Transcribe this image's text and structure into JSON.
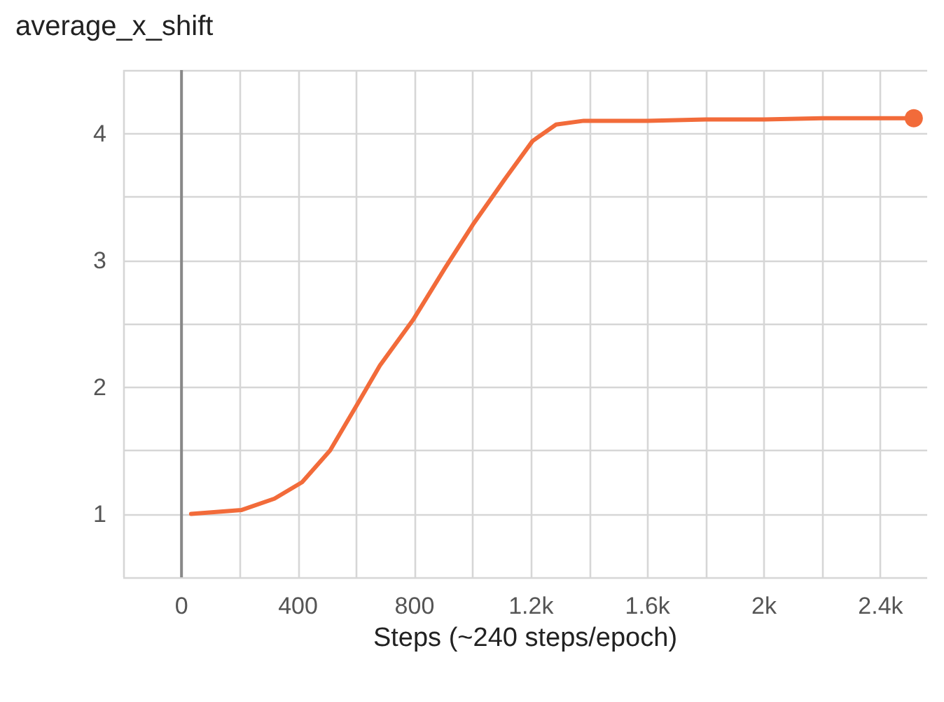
{
  "chart_data": {
    "type": "line",
    "title": "average_x_shift",
    "xlabel": "Steps (~240 steps/epoch)",
    "x": [
      33,
      205,
      319,
      414,
      510,
      605,
      681,
      795,
      905,
      1000,
      1110,
      1205,
      1286,
      1381,
      1600,
      1800,
      2000,
      2200,
      2400,
      2514
    ],
    "series": [
      {
        "color": "#f26b3a",
        "values": [
          1.0,
          1.03,
          1.12,
          1.25,
          1.5,
          1.87,
          2.17,
          2.53,
          2.94,
          3.28,
          3.64,
          3.94,
          4.07,
          4.1,
          4.1,
          4.11,
          4.11,
          4.12,
          4.12,
          4.12
        ]
      }
    ],
    "xlim": [
      -200,
      2560
    ],
    "xticks": [
      {
        "value": -200,
        "label": null
      },
      0,
      {
        "value": 200,
        "label": null
      },
      400,
      {
        "value": 600,
        "label": null
      },
      800,
      {
        "value": 1000,
        "label": null
      },
      {
        "value": 1200,
        "label": "1.2k"
      },
      {
        "value": 1400,
        "label": null
      },
      {
        "value": 1600,
        "label": "1.6k"
      },
      {
        "value": 1800,
        "label": null
      },
      {
        "value": 2000,
        "label": "2k"
      },
      {
        "value": 2200,
        "label": null
      },
      {
        "value": 2400,
        "label": "2.4k"
      }
    ],
    "ylim": [
      0.5,
      4.5
    ],
    "yticks": [
      {
        "value": 0.5,
        "label": null
      },
      1,
      {
        "value": 1.5,
        "label": null
      },
      2,
      {
        "value": 2.5,
        "label": null
      },
      3,
      {
        "value": 3.5,
        "label": null
      },
      4,
      {
        "value": 4.5,
        "label": null
      }
    ],
    "grid": true,
    "ref_lines": [
      {
        "axis": "x",
        "value": 0,
        "color": "#888888"
      }
    ]
  }
}
